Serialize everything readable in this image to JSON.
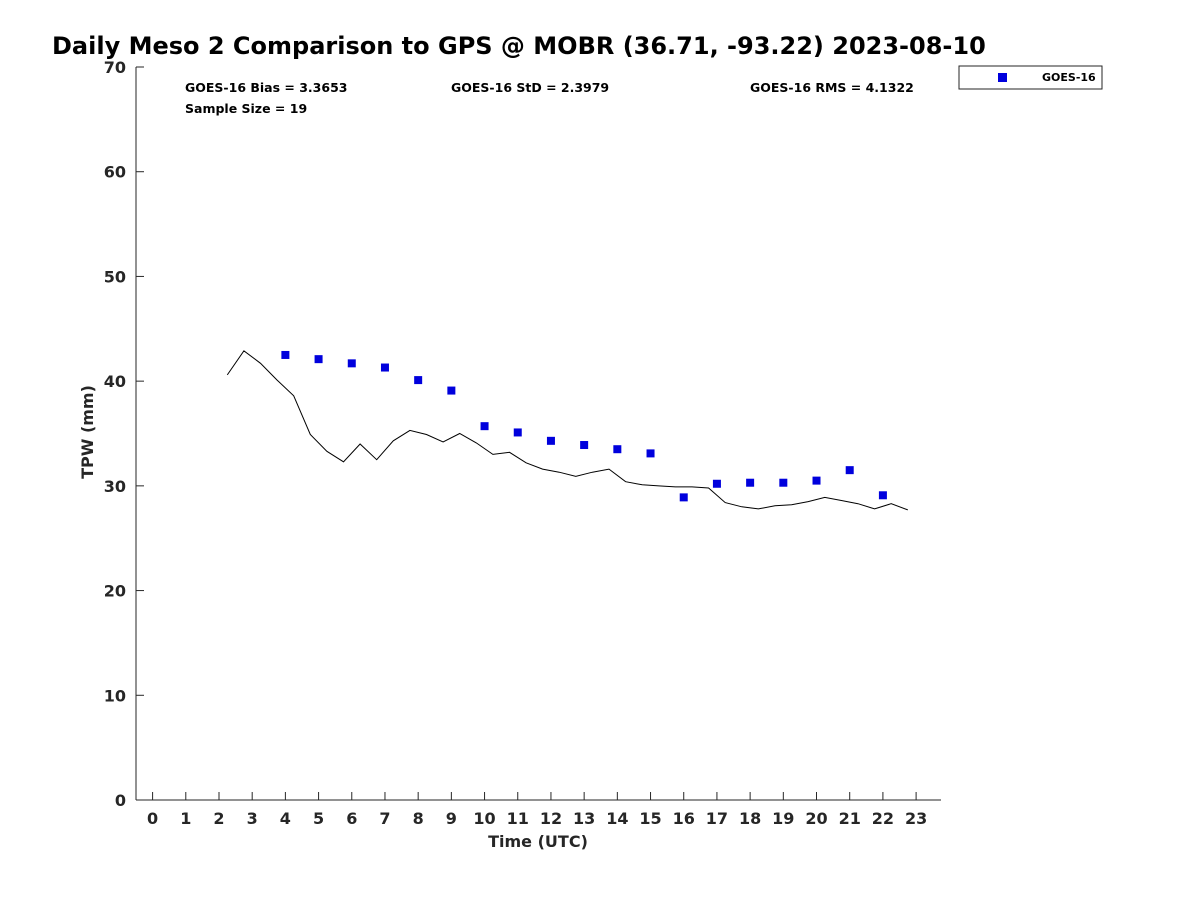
{
  "chart_data": {
    "type": "scatter",
    "title": "Daily Meso 2 Comparison to GPS @ MOBR (36.71, -93.22) 2023-08-10",
    "xlabel": "Time (UTC)",
    "ylabel": "TPW (mm)",
    "xlim": [
      -0.5,
      23.75
    ],
    "ylim": [
      0,
      70
    ],
    "x_ticks": [
      "0",
      "1",
      "2",
      "3",
      "4",
      "5",
      "6",
      "7",
      "8",
      "9",
      "10",
      "11",
      "12",
      "13",
      "14",
      "15",
      "16",
      "17",
      "18",
      "19",
      "20",
      "21",
      "22",
      "23"
    ],
    "y_ticks": [
      "0",
      "10",
      "20",
      "30",
      "40",
      "50",
      "60",
      "70"
    ],
    "grid": false,
    "legend_position": "top-right",
    "stats": {
      "bias": "GOES-16 Bias = 3.3653",
      "std": "GOES-16 StD = 2.3979",
      "rms": "GOES-16 RMS = 4.1322",
      "sample": "Sample Size = 19"
    },
    "colors": {
      "goes": "#0000dd",
      "gps": "#000000",
      "axis": "#262626"
    },
    "series": [
      {
        "name": "GOES-16",
        "kind": "scatter",
        "x": [
          4,
          5,
          6,
          7,
          8,
          9,
          10,
          11,
          12,
          13,
          14,
          15,
          16,
          17,
          18,
          19,
          20,
          21,
          22
        ],
        "y": [
          42.5,
          42.1,
          41.7,
          41.3,
          40.1,
          39.1,
          35.7,
          35.1,
          34.3,
          33.9,
          33.5,
          33.1,
          28.9,
          30.2,
          30.3,
          30.3,
          30.5,
          31.5,
          29.1
        ]
      },
      {
        "kind": "line",
        "x": [
          2.25,
          2.75,
          3.25,
          3.75,
          4.25,
          4.75,
          5.25,
          5.75,
          6.25,
          6.75,
          7.25,
          7.75,
          8.25,
          8.75,
          9.25,
          9.75,
          10.25,
          10.75,
          11.25,
          11.75,
          12.25,
          12.75,
          13.25,
          13.75,
          14.25,
          14.75,
          15.25,
          15.75,
          16.25,
          16.75,
          17.25,
          17.75,
          18.25,
          18.75,
          19.25,
          19.75,
          20.25,
          20.75,
          21.25,
          21.75,
          22.25,
          22.75
        ],
        "y": [
          40.6,
          42.9,
          41.7,
          40.1,
          38.6,
          34.9,
          33.3,
          32.3,
          34.0,
          32.5,
          34.3,
          35.3,
          34.9,
          34.2,
          35.0,
          34.1,
          33.0,
          33.2,
          32.2,
          31.6,
          31.3,
          30.9,
          31.3,
          31.6,
          30.4,
          30.1,
          30.0,
          29.9,
          29.9,
          29.8,
          28.4,
          28.0,
          27.8,
          28.1,
          28.2,
          28.5,
          28.9,
          28.6,
          28.3,
          27.8,
          28.3,
          27.7
        ]
      }
    ]
  }
}
